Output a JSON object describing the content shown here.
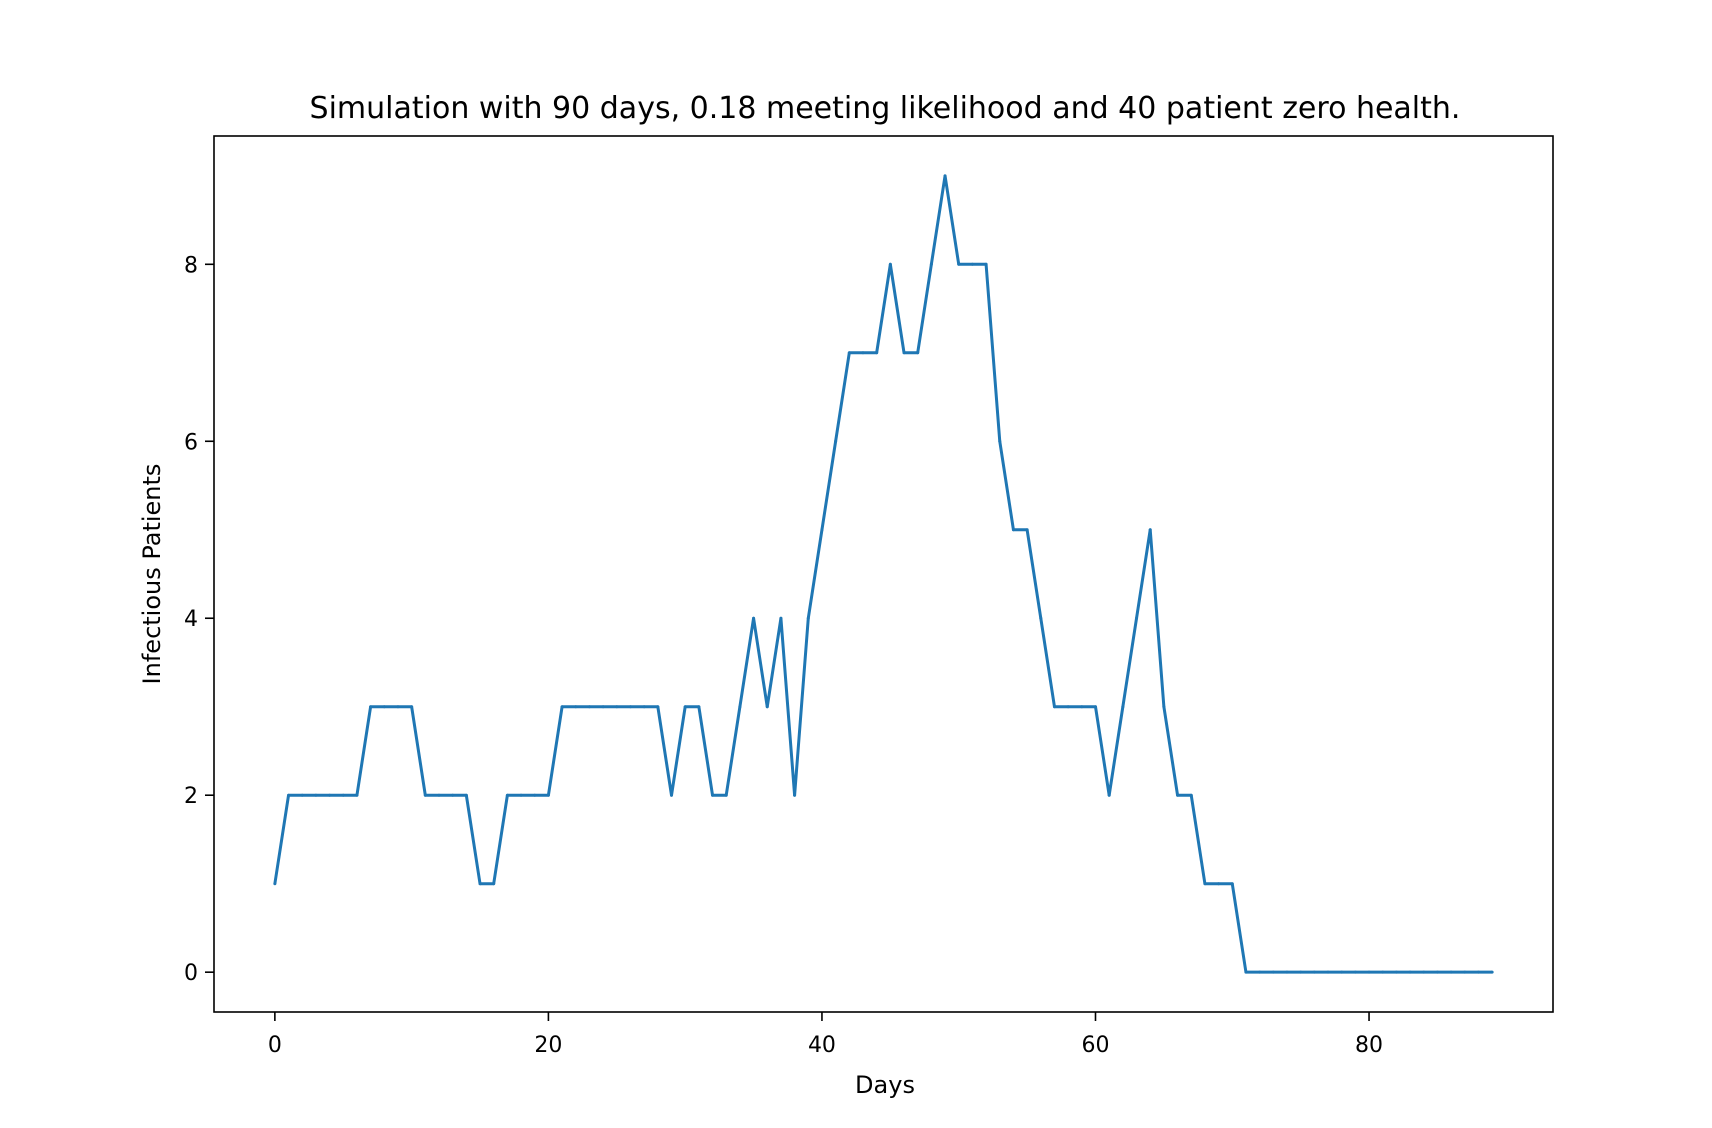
{
  "chart_data": {
    "type": "line",
    "title": "Simulation with 90 days, 0.18 meeting likelihood and 40 patient zero health.",
    "xlabel": "Days",
    "ylabel": "Infectious Patients",
    "xlim": [
      -4.45,
      93.45
    ],
    "ylim": [
      -0.45,
      9.45
    ],
    "xticks": [
      0,
      20,
      40,
      60,
      80
    ],
    "yticks": [
      0,
      2,
      4,
      6,
      8
    ],
    "grid": false,
    "line_color": "#1f77b4",
    "series": [
      {
        "x": [
          0,
          1,
          2,
          3,
          4,
          5,
          6,
          7,
          8,
          9,
          10,
          11,
          12,
          13,
          14,
          15,
          16,
          17,
          18,
          19,
          20,
          21,
          22,
          23,
          24,
          25,
          26,
          27,
          28,
          29,
          30,
          31,
          32,
          33,
          34,
          35,
          36,
          37,
          38,
          39,
          40,
          41,
          42,
          43,
          44,
          45,
          46,
          47,
          48,
          49,
          50,
          51,
          52,
          53,
          54,
          55,
          56,
          57,
          58,
          59,
          60,
          61,
          62,
          63,
          64,
          65,
          66,
          67,
          68,
          69,
          70,
          71,
          72,
          73,
          74,
          75,
          76,
          77,
          78,
          79,
          80,
          81,
          82,
          83,
          84,
          85,
          86,
          87,
          88,
          89
        ],
        "values": [
          1,
          2,
          2,
          2,
          2,
          2,
          2,
          3,
          3,
          3,
          3,
          2,
          2,
          2,
          2,
          1,
          1,
          2,
          2,
          2,
          2,
          3,
          3,
          3,
          3,
          3,
          3,
          3,
          3,
          2,
          3,
          3,
          2,
          2,
          3,
          4,
          3,
          4,
          2,
          4,
          5,
          6,
          7,
          7,
          7,
          8,
          7,
          7,
          8,
          9,
          8,
          8,
          8,
          6,
          5,
          5,
          4,
          3,
          3,
          3,
          3,
          2,
          3,
          4,
          5,
          3,
          2,
          2,
          1,
          1,
          1,
          0,
          0,
          0,
          0,
          0,
          0,
          0,
          0,
          0,
          0,
          0,
          0,
          0,
          0,
          0,
          0,
          0,
          0,
          0
        ]
      }
    ]
  }
}
